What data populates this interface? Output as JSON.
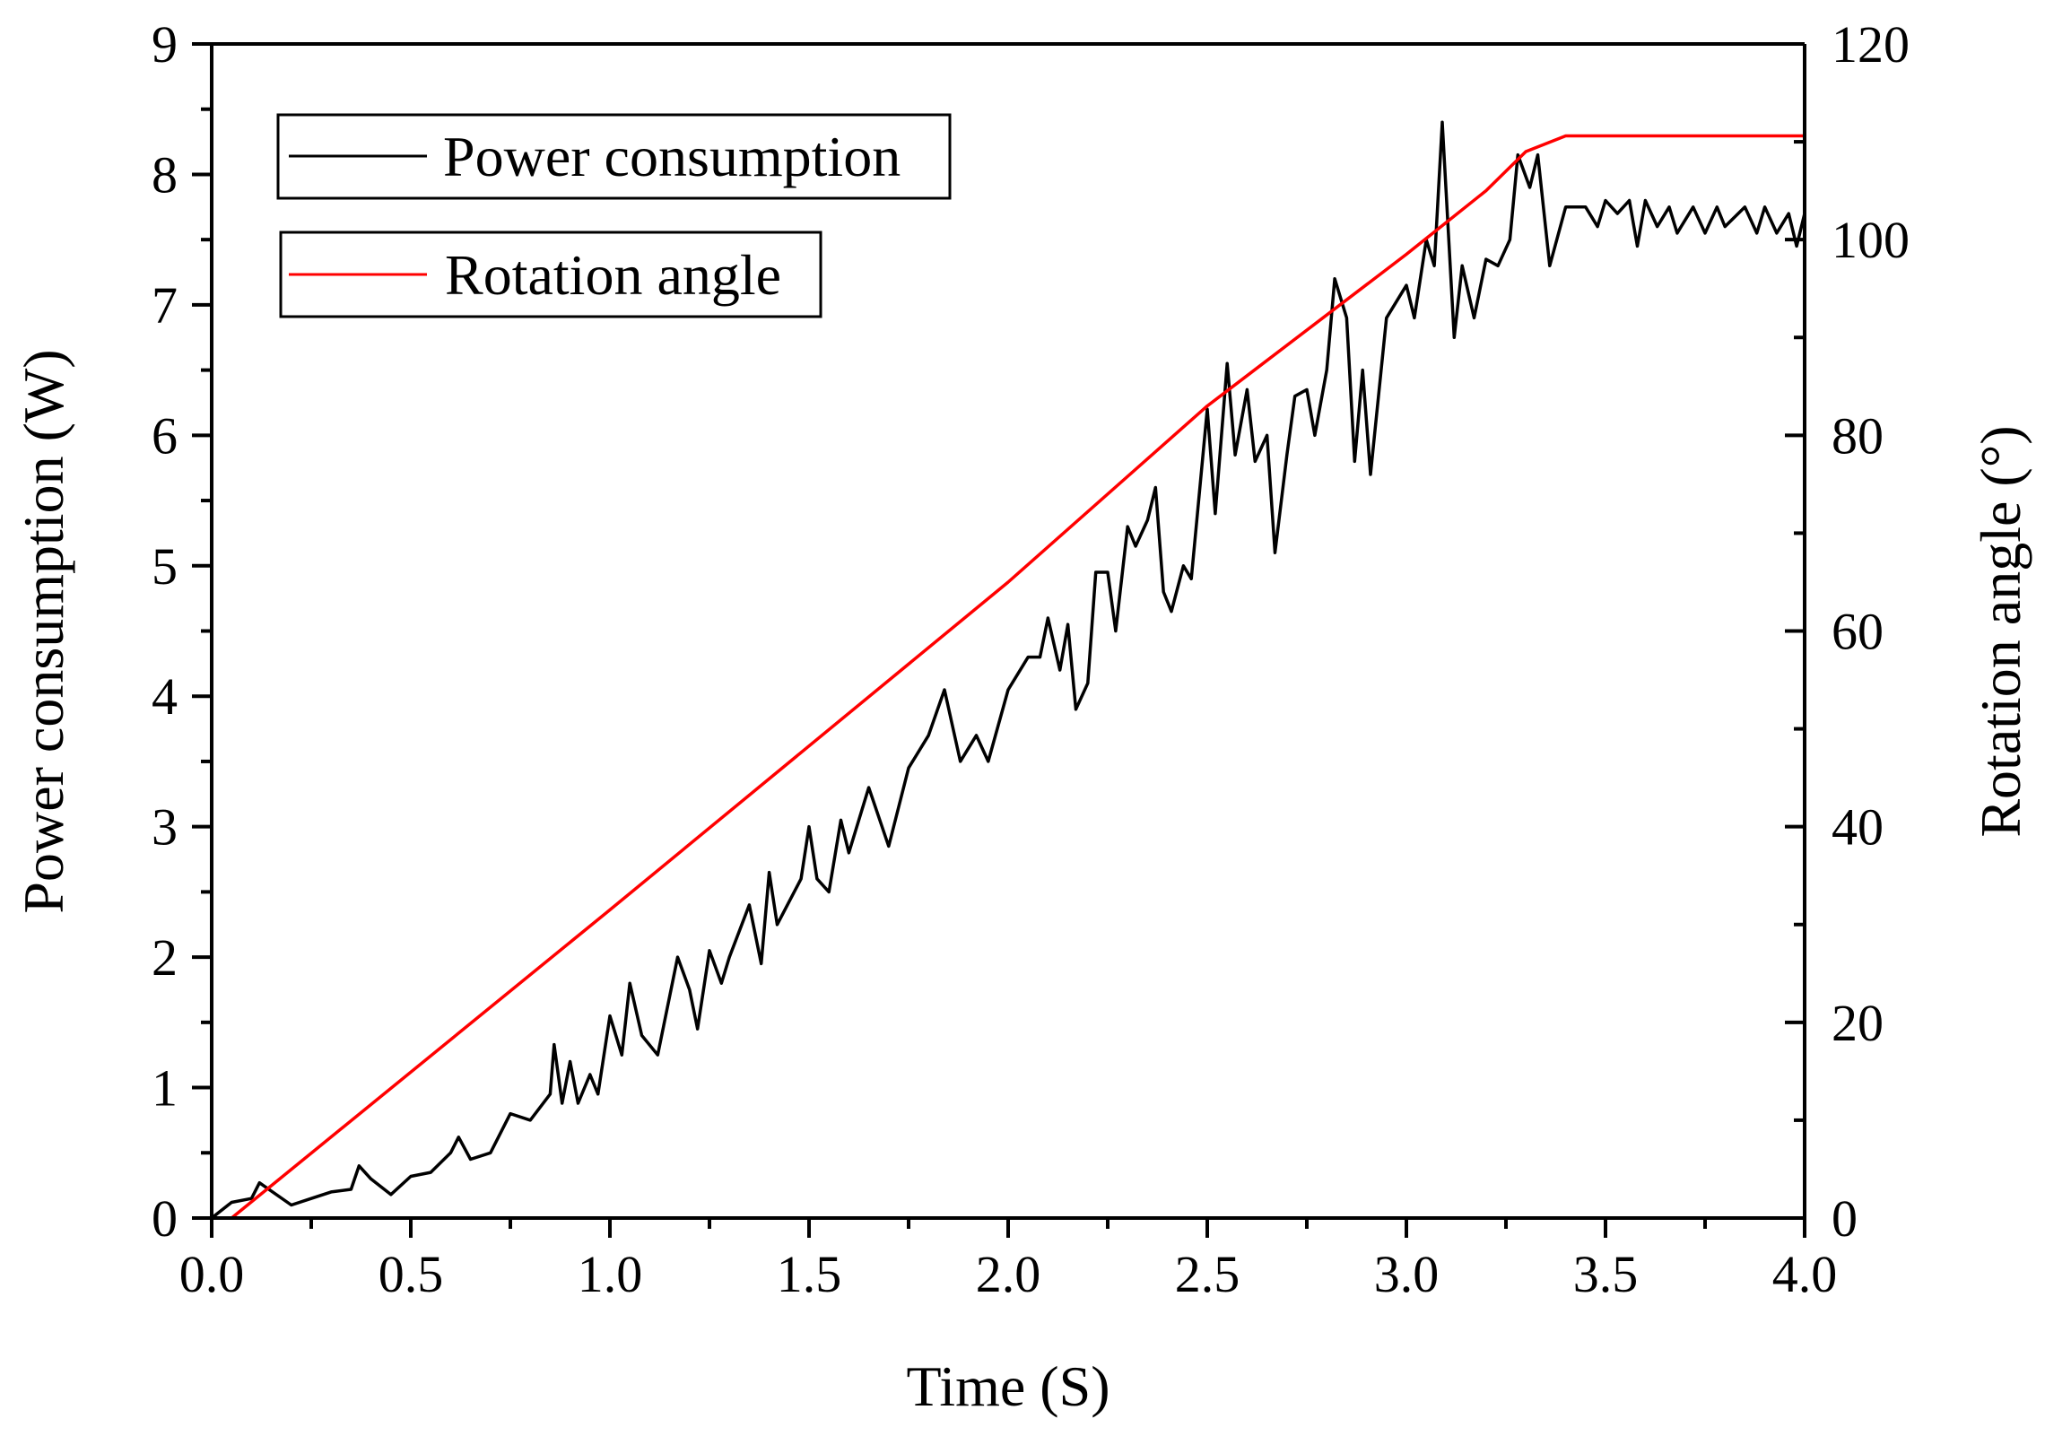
{
  "chart_data": {
    "type": "line",
    "title": "",
    "xlabel": "Time (S)",
    "ylabel": "Power consumption (W)",
    "y2label": "Rotation angle (°)",
    "xlim": [
      0,
      4
    ],
    "ylim": [
      0,
      9
    ],
    "y2lim": [
      0,
      120
    ],
    "xticks": [
      "0.0",
      "0.5",
      "1.0",
      "1.5",
      "2.0",
      "2.5",
      "3.0",
      "3.5",
      "4.0"
    ],
    "yticks": [
      "0",
      "1",
      "2",
      "3",
      "4",
      "5",
      "6",
      "7",
      "8",
      "9"
    ],
    "y2ticks": [
      "0",
      "20",
      "40",
      "60",
      "80",
      "100",
      "120"
    ],
    "grid": false,
    "legend_position": "top-left",
    "series": [
      {
        "name": "Power consumption",
        "axis": "left",
        "color": "#000000",
        "points": [
          [
            0,
            0
          ],
          [
            0.05,
            0.12
          ],
          [
            0.1,
            0.15
          ],
          [
            0.12,
            0.27
          ],
          [
            0.2,
            0.1
          ],
          [
            0.25,
            0.15
          ],
          [
            0.3,
            0.2
          ],
          [
            0.35,
            0.22
          ],
          [
            0.37,
            0.4
          ],
          [
            0.4,
            0.3
          ],
          [
            0.45,
            0.18
          ],
          [
            0.5,
            0.32
          ],
          [
            0.55,
            0.35
          ],
          [
            0.6,
            0.5
          ],
          [
            0.62,
            0.62
          ],
          [
            0.65,
            0.45
          ],
          [
            0.7,
            0.5
          ],
          [
            0.75,
            0.8
          ],
          [
            0.8,
            0.75
          ],
          [
            0.85,
            0.95
          ],
          [
            0.86,
            1.33
          ],
          [
            0.88,
            0.88
          ],
          [
            0.9,
            1.2
          ],
          [
            0.92,
            0.88
          ],
          [
            0.95,
            1.1
          ],
          [
            0.97,
            0.95
          ],
          [
            1.0,
            1.55
          ],
          [
            1.03,
            1.25
          ],
          [
            1.05,
            1.8
          ],
          [
            1.08,
            1.4
          ],
          [
            1.12,
            1.25
          ],
          [
            1.17,
            2.0
          ],
          [
            1.2,
            1.75
          ],
          [
            1.22,
            1.45
          ],
          [
            1.25,
            2.05
          ],
          [
            1.28,
            1.8
          ],
          [
            1.3,
            2.0
          ],
          [
            1.35,
            2.4
          ],
          [
            1.38,
            1.95
          ],
          [
            1.4,
            2.65
          ],
          [
            1.42,
            2.25
          ],
          [
            1.48,
            2.6
          ],
          [
            1.5,
            3.0
          ],
          [
            1.52,
            2.6
          ],
          [
            1.55,
            2.5
          ],
          [
            1.58,
            3.05
          ],
          [
            1.6,
            2.8
          ],
          [
            1.65,
            3.3
          ],
          [
            1.7,
            2.85
          ],
          [
            1.75,
            3.45
          ],
          [
            1.8,
            3.7
          ],
          [
            1.84,
            4.05
          ],
          [
            1.88,
            3.5
          ],
          [
            1.92,
            3.7
          ],
          [
            1.95,
            3.5
          ],
          [
            2.0,
            4.05
          ],
          [
            2.05,
            4.3
          ],
          [
            2.08,
            4.3
          ],
          [
            2.1,
            4.6
          ],
          [
            2.13,
            4.2
          ],
          [
            2.15,
            4.55
          ],
          [
            2.17,
            3.9
          ],
          [
            2.2,
            4.1
          ],
          [
            2.22,
            4.95
          ],
          [
            2.25,
            4.95
          ],
          [
            2.27,
            4.5
          ],
          [
            2.3,
            5.3
          ],
          [
            2.32,
            5.15
          ],
          [
            2.35,
            5.35
          ],
          [
            2.37,
            5.6
          ],
          [
            2.39,
            4.8
          ],
          [
            2.41,
            4.65
          ],
          [
            2.44,
            5.0
          ],
          [
            2.46,
            4.9
          ],
          [
            2.5,
            6.2
          ],
          [
            2.52,
            5.4
          ],
          [
            2.55,
            6.55
          ],
          [
            2.57,
            5.85
          ],
          [
            2.6,
            6.35
          ],
          [
            2.62,
            5.8
          ],
          [
            2.65,
            6.0
          ],
          [
            2.67,
            5.1
          ],
          [
            2.7,
            5.85
          ],
          [
            2.72,
            6.3
          ],
          [
            2.75,
            6.35
          ],
          [
            2.77,
            6.0
          ],
          [
            2.8,
            6.5
          ],
          [
            2.82,
            7.2
          ],
          [
            2.85,
            6.9
          ],
          [
            2.87,
            5.8
          ],
          [
            2.89,
            6.5
          ],
          [
            2.91,
            5.7
          ],
          [
            2.95,
            6.9
          ],
          [
            3.0,
            7.15
          ],
          [
            3.02,
            6.9
          ],
          [
            3.05,
            7.5
          ],
          [
            3.07,
            7.3
          ],
          [
            3.09,
            8.4
          ],
          [
            3.12,
            6.75
          ],
          [
            3.14,
            7.3
          ],
          [
            3.17,
            6.9
          ],
          [
            3.2,
            7.35
          ],
          [
            3.23,
            7.3
          ],
          [
            3.26,
            7.5
          ],
          [
            3.28,
            8.15
          ],
          [
            3.31,
            7.9
          ],
          [
            3.33,
            8.15
          ],
          [
            3.36,
            7.3
          ],
          [
            3.4,
            7.75
          ],
          [
            3.45,
            7.75
          ],
          [
            3.48,
            7.6
          ],
          [
            3.5,
            7.8
          ],
          [
            3.53,
            7.7
          ],
          [
            3.56,
            7.8
          ],
          [
            3.58,
            7.45
          ],
          [
            3.6,
            7.8
          ],
          [
            3.63,
            7.6
          ],
          [
            3.66,
            7.75
          ],
          [
            3.68,
            7.55
          ],
          [
            3.72,
            7.75
          ],
          [
            3.75,
            7.55
          ],
          [
            3.78,
            7.75
          ],
          [
            3.8,
            7.6
          ],
          [
            3.85,
            7.75
          ],
          [
            3.88,
            7.55
          ],
          [
            3.9,
            7.75
          ],
          [
            3.93,
            7.55
          ],
          [
            3.96,
            7.7
          ],
          [
            3.98,
            7.45
          ],
          [
            4.0,
            7.7
          ]
        ]
      },
      {
        "name": "Rotation angle",
        "axis": "right",
        "color": "#ff0000",
        "points": [
          [
            0,
            0
          ],
          [
            0.05,
            0
          ],
          [
            1.0,
            31.5
          ],
          [
            2.0,
            65
          ],
          [
            2.5,
            83
          ],
          [
            3.0,
            98.5
          ],
          [
            3.2,
            105
          ],
          [
            3.3,
            109
          ],
          [
            3.4,
            110.6
          ],
          [
            4.0,
            110.6
          ]
        ]
      }
    ]
  }
}
